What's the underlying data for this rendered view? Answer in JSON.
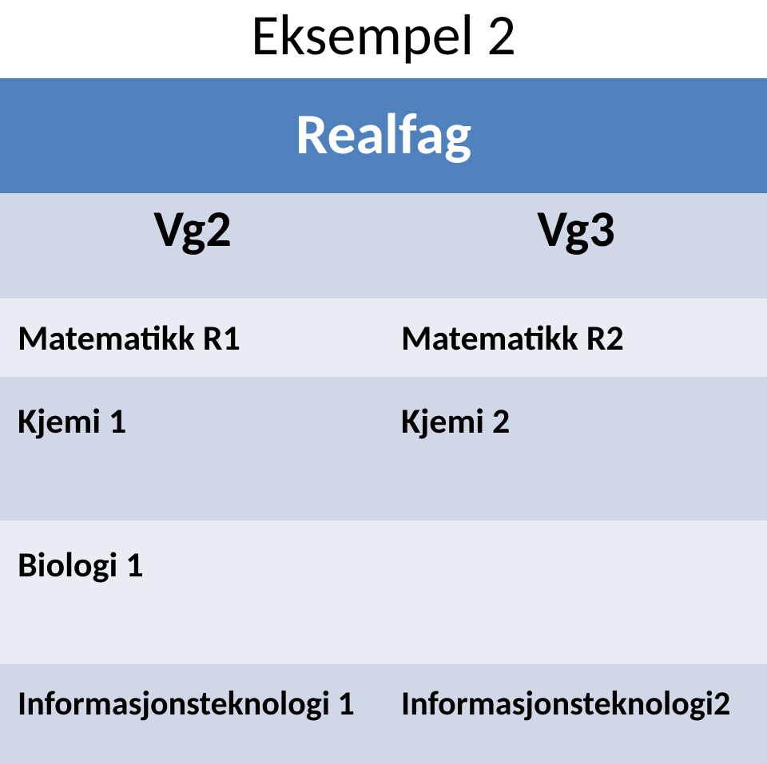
{
  "title": "Eksempel 2",
  "colors": {
    "header_bg": "#4f81bd",
    "header_text": "#ffffff",
    "row_alt_bg": "#d0d8e8",
    "row_bg": "#e9edf4",
    "title_text": "#000000",
    "body_text": "#000000"
  },
  "fonts": {
    "title_size_pt": 54,
    "header_size_pt": 54,
    "subheader_size_pt": 48,
    "cell_size_pt": 33
  },
  "table": {
    "merged_header": "Realfag",
    "subheaders": {
      "left": "Vg2",
      "right": "Vg3"
    },
    "rows": [
      {
        "left": "Matematikk R1",
        "right": "Matematikk R2"
      },
      {
        "left": "Kjemi 1",
        "right": "Kjemi 2"
      },
      {
        "left": "Biologi 1",
        "right": ""
      },
      {
        "left": "Informasjonsteknologi 1",
        "right": "Informasjonsteknologi2"
      }
    ]
  }
}
